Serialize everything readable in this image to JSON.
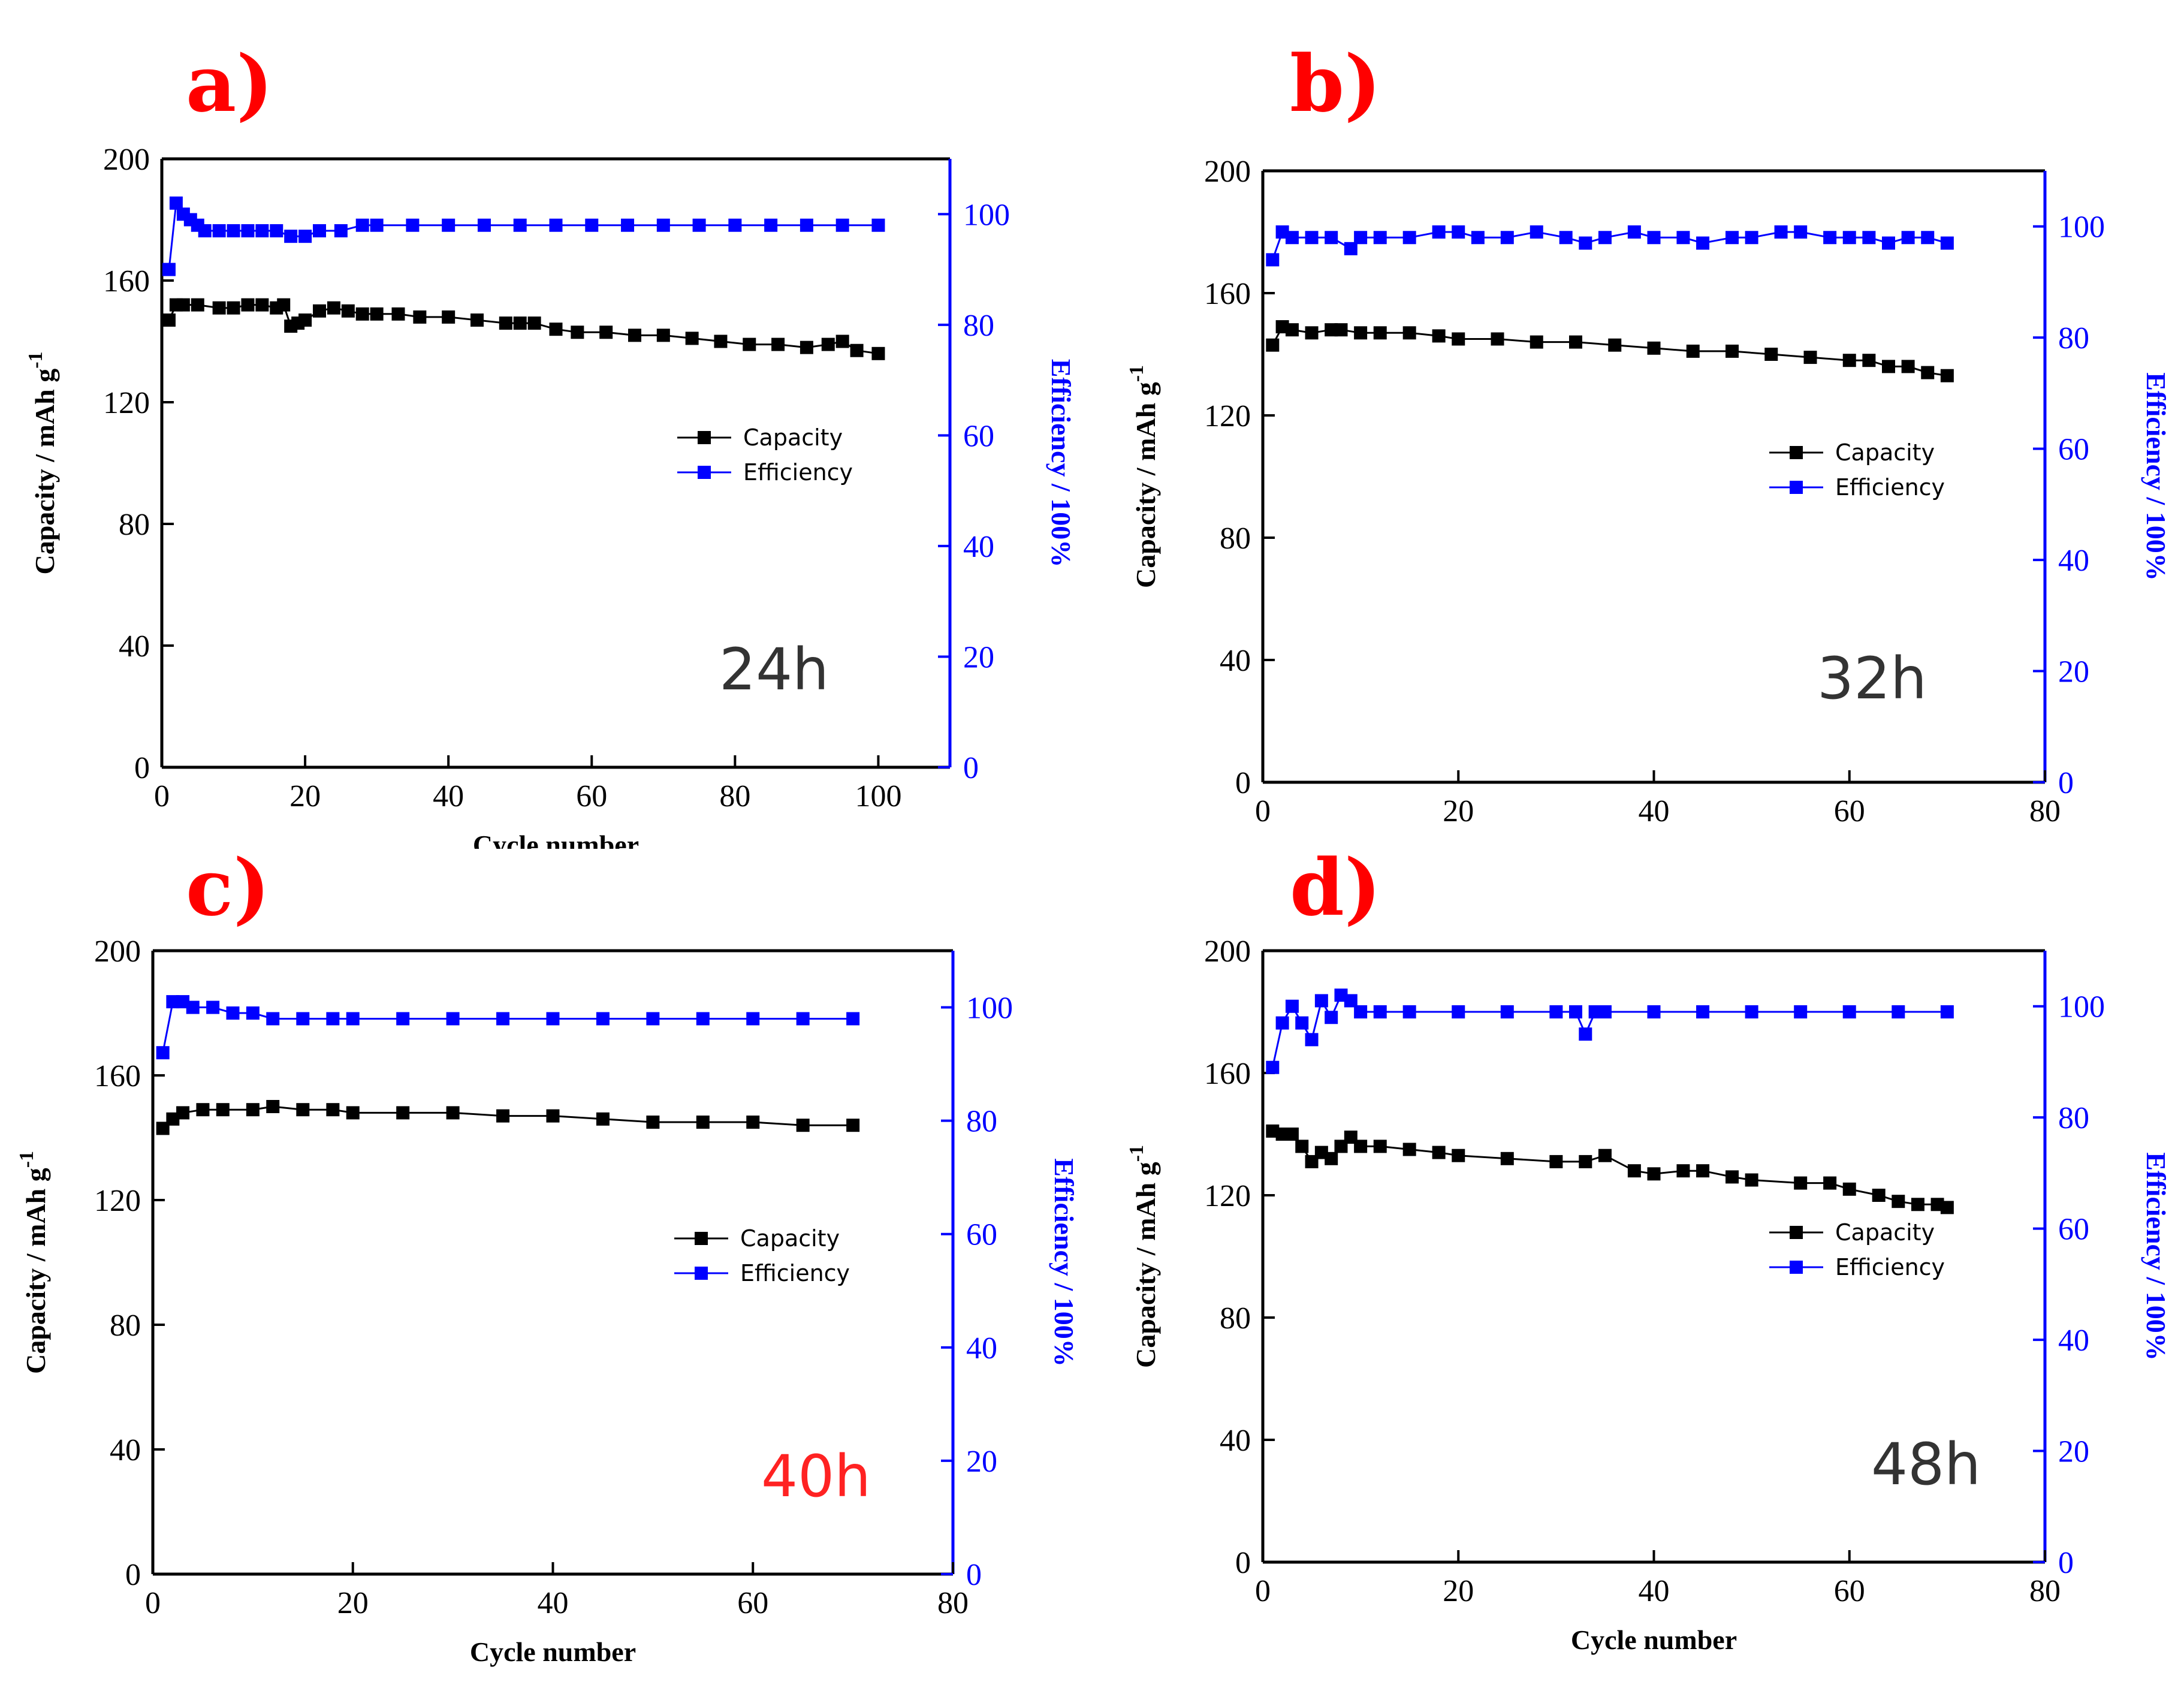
{
  "figure": {
    "colors": {
      "capacity": "#000000",
      "efficiency": "#0000FF",
      "letters": "#FF0000"
    }
  },
  "chart_data": [
    {
      "id": "a",
      "type": "line",
      "panel_label": "a)",
      "annotation": "24h",
      "annotation_color": "#333333",
      "xlabel": "Cycle number",
      "ylabel_left": "Capacity / mAh g",
      "ylabel_left_sup": "-1",
      "ylabel_right": "Efficiency / 100%",
      "xlim": [
        0,
        110
      ],
      "xticks": [
        0,
        20,
        40,
        60,
        80,
        100
      ],
      "ylim_left": [
        0,
        200
      ],
      "yticks_left": [
        0,
        40,
        80,
        120,
        160,
        200
      ],
      "ylim_right": [
        0,
        110
      ],
      "yticks_right": [
        0,
        20,
        40,
        60,
        80,
        100
      ],
      "legend": [
        "Capacity",
        "Efficiency"
      ],
      "legend_position": "middle-right",
      "series": [
        {
          "name": "Capacity",
          "axis": "left",
          "x": [
            1,
            2,
            3,
            5,
            8,
            10,
            12,
            14,
            16,
            17,
            18,
            19,
            20,
            22,
            24,
            26,
            28,
            30,
            33,
            36,
            40,
            44,
            48,
            50,
            52,
            55,
            58,
            62,
            66,
            70,
            74,
            78,
            82,
            86,
            90,
            93,
            95,
            97,
            100
          ],
          "y": [
            147,
            152,
            152,
            152,
            151,
            151,
            152,
            152,
            151,
            152,
            145,
            146,
            147,
            150,
            151,
            150,
            149,
            149,
            149,
            148,
            148,
            147,
            146,
            146,
            146,
            144,
            143,
            143,
            142,
            142,
            141,
            140,
            139,
            139,
            138,
            139,
            140,
            137,
            136
          ]
        },
        {
          "name": "Efficiency",
          "axis": "right",
          "x": [
            1,
            2,
            3,
            4,
            5,
            6,
            8,
            10,
            12,
            14,
            16,
            18,
            20,
            22,
            25,
            28,
            30,
            35,
            40,
            45,
            50,
            55,
            60,
            65,
            70,
            75,
            80,
            85,
            90,
            95,
            100
          ],
          "y": [
            90,
            102,
            100,
            99,
            98,
            97,
            97,
            97,
            97,
            97,
            97,
            96,
            96,
            97,
            97,
            98,
            98,
            98,
            98,
            98,
            98,
            98,
            98,
            98,
            98,
            98,
            98,
            98,
            98,
            98,
            98
          ]
        }
      ]
    },
    {
      "id": "b",
      "type": "line",
      "panel_label": "b)",
      "annotation": "32h",
      "annotation_color": "#333333",
      "xlabel": "Cycle number",
      "ylabel_left": "Capacity / mAh g",
      "ylabel_left_sup": "-1",
      "ylabel_right": "Efficiency / 100%",
      "xlim": [
        0,
        80
      ],
      "xticks": [
        0,
        20,
        40,
        60,
        80
      ],
      "ylim_left": [
        0,
        200
      ],
      "yticks_left": [
        0,
        40,
        80,
        120,
        160,
        200
      ],
      "ylim_right": [
        0,
        110
      ],
      "yticks_right": [
        0,
        20,
        40,
        60,
        80,
        100
      ],
      "legend": [
        "Capacity",
        "Efficiency"
      ],
      "legend_position": "middle-right",
      "series": [
        {
          "name": "Capacity",
          "axis": "left",
          "x": [
            1,
            2,
            3,
            5,
            7,
            8,
            10,
            12,
            15,
            18,
            20,
            24,
            28,
            32,
            36,
            40,
            44,
            48,
            52,
            56,
            60,
            62,
            64,
            66,
            68,
            70
          ],
          "y": [
            143,
            149,
            148,
            147,
            148,
            148,
            147,
            147,
            147,
            146,
            145,
            145,
            144,
            144,
            143,
            142,
            141,
            141,
            140,
            139,
            138,
            138,
            136,
            136,
            134,
            133
          ]
        },
        {
          "name": "Efficiency",
          "axis": "right",
          "x": [
            1,
            2,
            3,
            5,
            7,
            9,
            10,
            12,
            15,
            18,
            20,
            22,
            25,
            28,
            31,
            33,
            35,
            38,
            40,
            43,
            45,
            48,
            50,
            53,
            55,
            58,
            60,
            62,
            64,
            66,
            68,
            70
          ],
          "y": [
            94,
            99,
            98,
            98,
            98,
            96,
            98,
            98,
            98,
            99,
            99,
            98,
            98,
            99,
            98,
            97,
            98,
            99,
            98,
            98,
            97,
            98,
            98,
            99,
            99,
            98,
            98,
            98,
            97,
            98,
            98,
            97
          ]
        }
      ]
    },
    {
      "id": "c",
      "type": "line",
      "panel_label": "c)",
      "annotation": "40h",
      "annotation_color": "#FF2222",
      "xlabel": "Cycle number",
      "ylabel_left": "Capacity / mAh g",
      "ylabel_left_sup": "-1",
      "ylabel_right": "Efficiency / 100%",
      "xlim": [
        0,
        80
      ],
      "xticks": [
        0,
        20,
        40,
        60,
        80
      ],
      "ylim_left": [
        0,
        200
      ],
      "yticks_left": [
        0,
        40,
        80,
        120,
        160,
        200
      ],
      "ylim_right": [
        0,
        110
      ],
      "yticks_right": [
        0,
        20,
        40,
        60,
        80,
        100
      ],
      "legend": [
        "Capacity",
        "Efficiency"
      ],
      "legend_position": "middle-right",
      "series": [
        {
          "name": "Capacity",
          "axis": "left",
          "x": [
            1,
            2,
            3,
            5,
            7,
            10,
            12,
            15,
            18,
            20,
            25,
            30,
            35,
            40,
            45,
            50,
            55,
            60,
            65,
            70
          ],
          "y": [
            143,
            146,
            148,
            149,
            149,
            149,
            150,
            149,
            149,
            148,
            148,
            148,
            147,
            147,
            146,
            145,
            145,
            145,
            144,
            144
          ]
        },
        {
          "name": "Efficiency",
          "axis": "right",
          "x": [
            1,
            2,
            3,
            4,
            6,
            8,
            10,
            12,
            15,
            18,
            20,
            25,
            30,
            35,
            40,
            45,
            50,
            55,
            60,
            65,
            70
          ],
          "y": [
            92,
            101,
            101,
            100,
            100,
            99,
            99,
            98,
            98,
            98,
            98,
            98,
            98,
            98,
            98,
            98,
            98,
            98,
            98,
            98,
            98
          ]
        }
      ]
    },
    {
      "id": "d",
      "type": "line",
      "panel_label": "d)",
      "annotation": "48h",
      "annotation_color": "#333333",
      "xlabel": "Cycle number",
      "ylabel_left": "Capacity / mAh g",
      "ylabel_left_sup": "-1",
      "ylabel_right": "Efficiency / 100%",
      "xlim": [
        0,
        80
      ],
      "xticks": [
        0,
        20,
        40,
        60,
        80
      ],
      "ylim_left": [
        0,
        200
      ],
      "yticks_left": [
        0,
        40,
        80,
        120,
        160,
        200
      ],
      "ylim_right": [
        0,
        110
      ],
      "yticks_right": [
        0,
        20,
        40,
        60,
        80,
        100
      ],
      "legend": [
        "Capacity",
        "Efficiency"
      ],
      "legend_position": "middle-right",
      "series": [
        {
          "name": "Capacity",
          "axis": "left",
          "x": [
            1,
            2,
            3,
            4,
            5,
            6,
            7,
            8,
            9,
            10,
            12,
            15,
            18,
            20,
            25,
            30,
            33,
            35,
            38,
            40,
            43,
            45,
            48,
            50,
            55,
            58,
            60,
            63,
            65,
            67,
            69,
            70
          ],
          "y": [
            141,
            140,
            140,
            136,
            131,
            134,
            132,
            136,
            139,
            136,
            136,
            135,
            134,
            133,
            132,
            131,
            131,
            133,
            128,
            127,
            128,
            128,
            126,
            125,
            124,
            124,
            122,
            120,
            118,
            117,
            117,
            116
          ]
        },
        {
          "name": "Efficiency",
          "axis": "right",
          "x": [
            1,
            2,
            3,
            4,
            5,
            6,
            7,
            8,
            9,
            10,
            12,
            15,
            20,
            25,
            30,
            32,
            33,
            34,
            35,
            40,
            45,
            50,
            55,
            60,
            65,
            70
          ],
          "y": [
            89,
            97,
            100,
            97,
            94,
            101,
            98,
            102,
            101,
            99,
            99,
            99,
            99,
            99,
            99,
            99,
            95,
            99,
            99,
            99,
            99,
            99,
            99,
            99,
            99,
            99
          ]
        }
      ]
    }
  ]
}
